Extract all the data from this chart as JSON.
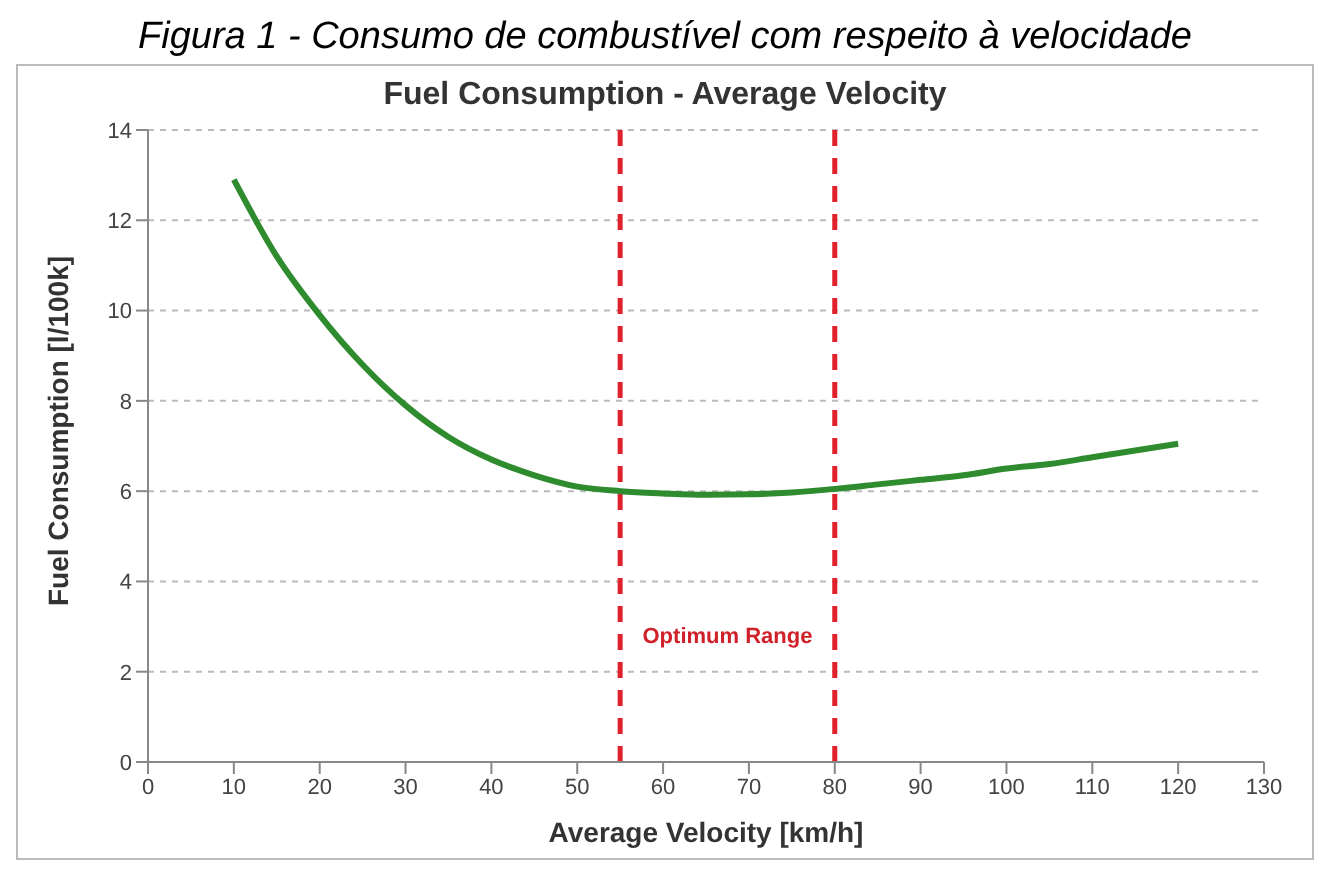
{
  "chart_data": {
    "type": "line",
    "title": "Fuel Consumption - Average Velocity",
    "xlabel": "Average Velocity [km/h]",
    "ylabel": "Fuel Consumption [l/100k]",
    "annotations": [
      "Figura 1 - Consumo de combustível com respeito à velocidade",
      "Optimum Range"
    ],
    "x": [
      10,
      15,
      20,
      25,
      30,
      35,
      40,
      45,
      50,
      55,
      60,
      65,
      70,
      75,
      80,
      85,
      90,
      95,
      100,
      105,
      110,
      115,
      120
    ],
    "series": [
      {
        "color": "#2e8b2e",
        "values": [
          12.9,
          11.2,
          9.9,
          8.8,
          7.9,
          7.2,
          6.7,
          6.35,
          6.1,
          6.0,
          5.95,
          5.92,
          5.93,
          5.97,
          6.05,
          6.15,
          6.25,
          6.35,
          6.5,
          6.6,
          6.75,
          6.9,
          7.05
        ]
      }
    ],
    "xlim": [
      0,
      130
    ],
    "xticks": [
      0,
      10,
      20,
      30,
      40,
      50,
      60,
      70,
      80,
      90,
      100,
      110,
      120,
      130
    ],
    "ylim": [
      0,
      14
    ],
    "yticks": [
      0,
      2,
      4,
      6,
      8,
      10,
      12,
      14
    ],
    "ref_lines": [
      {
        "axis": "x",
        "value": 55,
        "color": "#e0202a",
        "line_style": "dashed"
      },
      {
        "axis": "x",
        "value": 80,
        "color": "#e0202a",
        "line_style": "dashed"
      }
    ],
    "grid": "y",
    "legend": false,
    "marker": "none",
    "line_style": "solid"
  }
}
